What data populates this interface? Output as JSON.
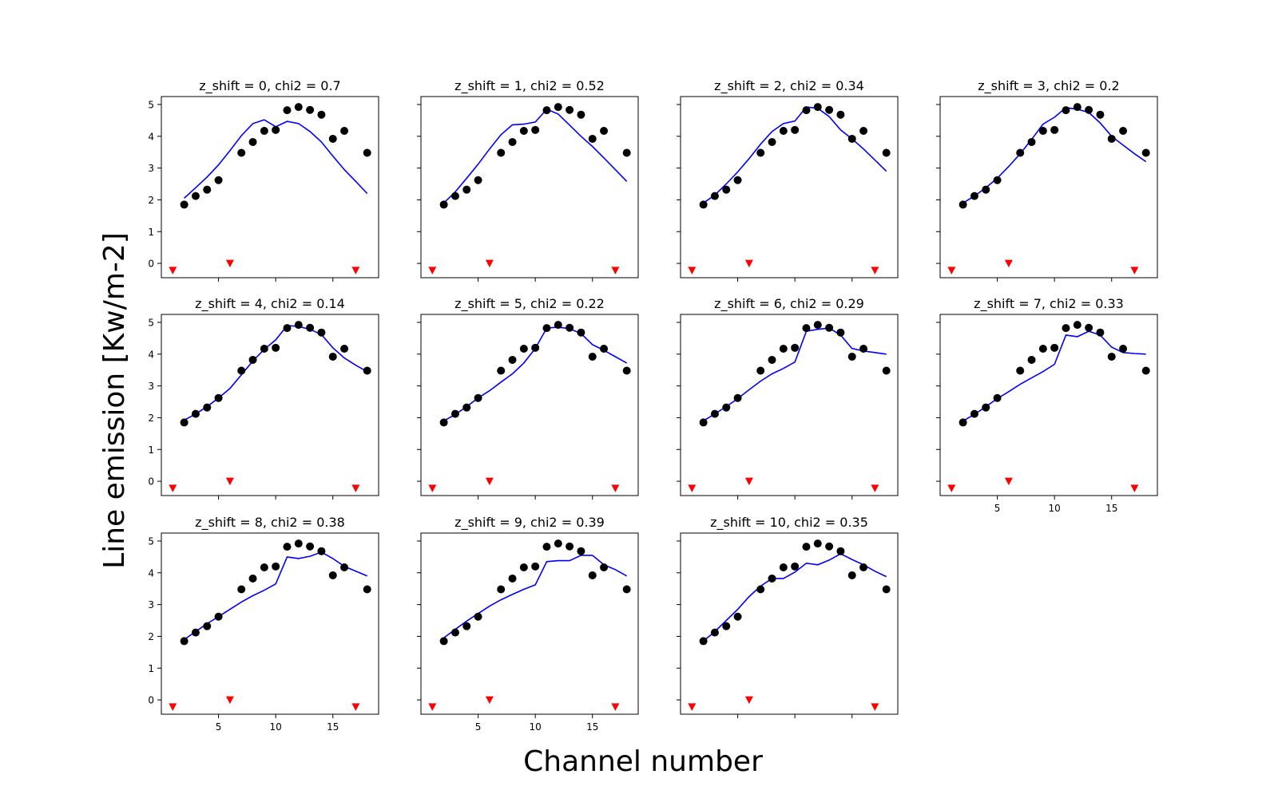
{
  "figure": {
    "xlabel": "Channel number",
    "ylabel": "Line emission [Kw/m-2]"
  },
  "chart_data": {
    "type": "scatter",
    "layout": "4x3 grid of subplots (11 panels), shared axes",
    "xlabel": "Channel number",
    "ylabel": "Line emission [Kw/m-2]",
    "xlim": [
      0,
      19
    ],
    "ylim": [
      -0.45,
      5.25
    ],
    "x_ticks": [
      5,
      10,
      15
    ],
    "y_ticks": [
      0,
      1,
      2,
      3,
      4,
      5
    ],
    "observed": {
      "color": "#000000",
      "x": [
        2,
        3,
        4,
        5,
        7,
        8,
        9,
        10,
        11,
        12,
        13,
        14,
        15,
        16,
        18
      ],
      "y": [
        1.85,
        2.12,
        2.32,
        2.62,
        3.48,
        3.82,
        4.17,
        4.2,
        4.82,
        4.92,
        4.83,
        4.68,
        3.92,
        4.17,
        3.48
      ]
    },
    "markers": {
      "color": "#ff0000",
      "x": [
        1,
        6,
        17
      ],
      "y": [
        -0.22,
        0.0,
        -0.22
      ]
    },
    "model_color": "#0000ff",
    "model_x": [
      2,
      3,
      4,
      5,
      6,
      7,
      8,
      9,
      10,
      11,
      12,
      13,
      14,
      15,
      16,
      17,
      18
    ],
    "panels": [
      {
        "title": "z_shift = 0, chi2 = 0.7",
        "model_y": [
          2.05,
          2.38,
          2.72,
          3.1,
          3.55,
          4.02,
          4.4,
          4.52,
          4.3,
          4.47,
          4.4,
          4.15,
          3.82,
          3.38,
          2.95,
          2.58,
          2.2
        ]
      },
      {
        "title": "z_shift = 1, chi2 = 0.52",
        "model_y": [
          1.9,
          2.25,
          2.68,
          3.12,
          3.6,
          4.05,
          4.36,
          4.38,
          4.45,
          4.85,
          4.7,
          4.35,
          4.0,
          3.68,
          3.32,
          2.95,
          2.58
        ]
      },
      {
        "title": "z_shift = 2, chi2 = 0.34",
        "model_y": [
          1.9,
          2.15,
          2.5,
          2.88,
          3.3,
          3.75,
          4.15,
          4.4,
          4.48,
          4.92,
          4.88,
          4.62,
          4.2,
          3.92,
          3.6,
          3.25,
          2.9
        ]
      },
      {
        "title": "z_shift = 3, chi2 = 0.2",
        "model_y": [
          1.9,
          2.12,
          2.38,
          2.68,
          3.05,
          3.45,
          3.9,
          4.38,
          4.6,
          4.9,
          4.85,
          4.75,
          4.42,
          4.0,
          3.72,
          3.45,
          3.2
        ]
      },
      {
        "title": "z_shift = 4, chi2 = 0.14",
        "model_y": [
          1.92,
          2.12,
          2.35,
          2.62,
          2.92,
          3.35,
          3.78,
          4.15,
          4.45,
          4.9,
          4.87,
          4.78,
          4.62,
          4.2,
          3.88,
          3.65,
          3.45
        ]
      },
      {
        "title": "z_shift = 5, chi2 = 0.22",
        "model_y": [
          1.9,
          2.1,
          2.35,
          2.62,
          2.85,
          3.12,
          3.38,
          3.72,
          4.18,
          4.82,
          4.85,
          4.8,
          4.65,
          4.3,
          4.12,
          3.92,
          3.72
        ]
      },
      {
        "title": "z_shift = 6, chi2 = 0.29",
        "model_y": [
          1.9,
          2.12,
          2.35,
          2.6,
          2.88,
          3.15,
          3.38,
          3.55,
          3.75,
          4.72,
          4.78,
          4.82,
          4.6,
          4.18,
          4.1,
          4.05,
          4.0
        ]
      },
      {
        "title": "z_shift = 7, chi2 = 0.33",
        "model_y": [
          1.9,
          2.1,
          2.35,
          2.6,
          2.82,
          3.05,
          3.25,
          3.45,
          3.68,
          4.6,
          4.55,
          4.72,
          4.6,
          4.22,
          4.05,
          4.02,
          4.0
        ]
      },
      {
        "title": "z_shift = 8, chi2 = 0.38",
        "model_y": [
          1.9,
          2.15,
          2.4,
          2.62,
          2.85,
          3.08,
          3.28,
          3.45,
          3.65,
          4.5,
          4.45,
          4.52,
          4.65,
          4.45,
          4.2,
          4.05,
          3.9
        ]
      },
      {
        "title": "z_shift = 9, chi2 = 0.39",
        "model_y": [
          1.95,
          2.22,
          2.48,
          2.72,
          2.95,
          3.15,
          3.32,
          3.48,
          3.62,
          4.35,
          4.38,
          4.38,
          4.55,
          4.55,
          4.25,
          4.1,
          3.9
        ]
      },
      {
        "title": "z_shift = 10, chi2 = 0.35",
        "model_y": [
          1.85,
          2.15,
          2.5,
          2.85,
          3.25,
          3.58,
          3.82,
          3.82,
          4.02,
          4.3,
          4.25,
          4.4,
          4.6,
          4.42,
          4.25,
          4.05,
          3.88
        ]
      }
    ]
  }
}
